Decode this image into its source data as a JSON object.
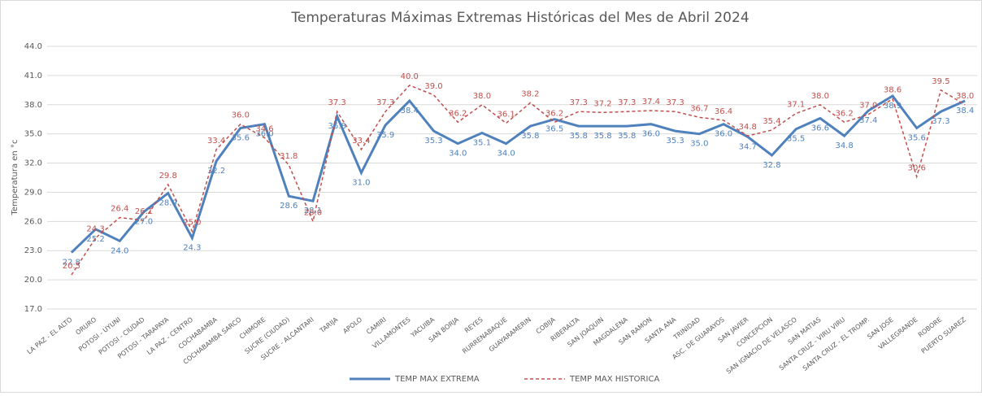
{
  "chart_data": {
    "type": "line",
    "title": "Temperaturas Máximas Extremas Históricas del Mes de Abril 2024",
    "y_label": "Temperatura en °c",
    "categories": [
      "LA PAZ - EL ALTO",
      "ORURO",
      "POTOSI - UYUNI",
      "POTOSI - CIUDAD",
      "POTOSI - TARAPAYA",
      "LA PAZ - CENTRO",
      "COCHABAMBA",
      "COCHABAMBA SARCO",
      "CHIMORE",
      "SUCRE (CIUDAD)",
      "SUCRE - ALCANTARI",
      "TARIJA",
      "APOLO",
      "CAMIRI",
      "VILLAMONTES",
      "YACUIBA",
      "SAN BORJA",
      "REYES",
      "RURRENABAQUE",
      "GUAYARAMERIN",
      "COBIJA",
      "RIBERALTA",
      "SAN JOAQUIN",
      "MAGDALENA",
      "SAN RAMON",
      "SANTA ANA",
      "TRINIDAD",
      "ASC. DE GUARAYOS",
      "SAN JAVIER",
      "CONCEPCION",
      "SAN IGNACIO DE VELASCO",
      "SAN MATIAS",
      "SANTA CRUZ - VIRU VIRU",
      "SANTA CRUZ - EL TROMP.",
      "SAN JOSE",
      "VALLEGRANDE",
      "ROBORE",
      "PUERTO SUAREZ"
    ],
    "series": [
      {
        "name": "TEMP MAX EXTREMA",
        "color": "#4f81bd",
        "dash": false,
        "values": [
          22.8,
          25.2,
          24.0,
          27.0,
          28.9,
          24.3,
          32.2,
          35.6,
          36.0,
          28.6,
          28.1,
          36.8,
          31.0,
          35.9,
          38.4,
          35.3,
          34.0,
          35.1,
          34.0,
          35.8,
          36.5,
          35.8,
          35.8,
          35.8,
          36.0,
          35.3,
          35.0,
          36.0,
          34.7,
          32.8,
          35.5,
          36.6,
          34.8,
          37.4,
          38.9,
          35.6,
          37.3,
          38.4
        ],
        "value_labels": [
          "22.8",
          "25.2",
          "24.0",
          "27.0",
          "28.9",
          "24.3",
          "32.2",
          "35.6",
          "36.0",
          "28.6",
          "28.1",
          "36.8",
          "31.0",
          "35.9",
          "38.4",
          "35.3",
          "34.0",
          "35.1",
          "34.0",
          "35.8",
          "36.5",
          "35.8",
          "35.8",
          "35.8",
          "36.0",
          "35.3",
          "35.0",
          "36.0",
          "34.7",
          "32.8",
          "35.5",
          "36.6",
          "34.8",
          "37.4",
          "38.9",
          "35.6",
          "37.3",
          "38.4"
        ]
      },
      {
        "name": "TEMP MAX HISTORICA",
        "color": "#c0504d",
        "dash": true,
        "values": [
          20.5,
          24.3,
          26.4,
          26.1,
          29.8,
          25.0,
          33.4,
          36.0,
          34.6,
          31.8,
          26.0,
          37.3,
          33.4,
          37.3,
          40.0,
          39.0,
          36.2,
          38.0,
          36.1,
          38.2,
          36.2,
          37.3,
          37.2,
          37.3,
          37.4,
          37.3,
          36.7,
          36.4,
          34.8,
          35.4,
          37.1,
          38.0,
          36.2,
          37.0,
          38.6,
          30.6,
          39.5,
          38.0
        ],
        "value_labels": [
          "20.5",
          "24.3",
          "26.4",
          "26.1",
          "29.8",
          "25.0",
          "33.4",
          "36.0",
          "34.6",
          "31.8",
          "26.0",
          "37.3",
          "33.4",
          "37.3",
          "40.0",
          "39.0",
          "36.2",
          "38.0",
          "36.1",
          "38.2",
          "36.2",
          "37.3",
          "37.2",
          "37.3",
          "37.4",
          "37.3",
          "36.7",
          "36.4",
          "34.8",
          "35.4",
          "37.1",
          "38.0",
          "36.2",
          "37.0",
          "38.6",
          "30.6",
          "39.5",
          "38.0"
        ]
      }
    ],
    "ylim": [
      17,
      44
    ],
    "yticks": [
      {
        "value": 17,
        "label": "17.0"
      },
      {
        "value": 20,
        "label": "20.0"
      },
      {
        "value": 23,
        "label": "23.0"
      },
      {
        "value": 26,
        "label": "26.0"
      },
      {
        "value": 29,
        "label": "29.0"
      },
      {
        "value": 32,
        "label": "32.0"
      },
      {
        "value": 35,
        "label": "35.0"
      },
      {
        "value": 38,
        "label": "38.0"
      },
      {
        "value": 41,
        "label": "41.0"
      },
      {
        "value": 44,
        "label": "44.0"
      }
    ],
    "grid": true,
    "legend": "bottom"
  }
}
